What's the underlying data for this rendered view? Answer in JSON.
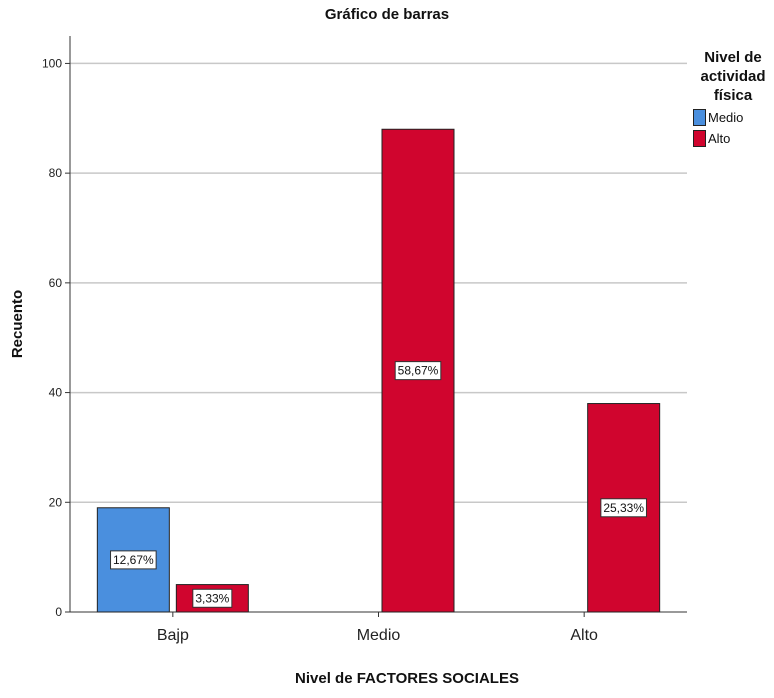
{
  "chart_data": {
    "type": "bar",
    "title": "Gráfico de barras",
    "xlabel": "Nivel de FACTORES SOCIALES",
    "ylabel": "Recuento",
    "ylim": [
      0,
      105
    ],
    "yticks": [
      0,
      20,
      40,
      60,
      80,
      100
    ],
    "grid": true,
    "categories": [
      "Bajp",
      "Medio",
      "Alto"
    ],
    "legend": {
      "title": "Nivel de actividad física",
      "placement": "right"
    },
    "series": [
      {
        "name": "Medio",
        "color": "#4a8fde",
        "values": [
          19,
          null,
          null
        ],
        "labels": [
          "12,67%",
          null,
          null
        ]
      },
      {
        "name": "Alto",
        "color": "#d0052e",
        "values": [
          5,
          88,
          38
        ],
        "labels": [
          "3,33%",
          "58,67%",
          "25,33%"
        ]
      }
    ]
  }
}
